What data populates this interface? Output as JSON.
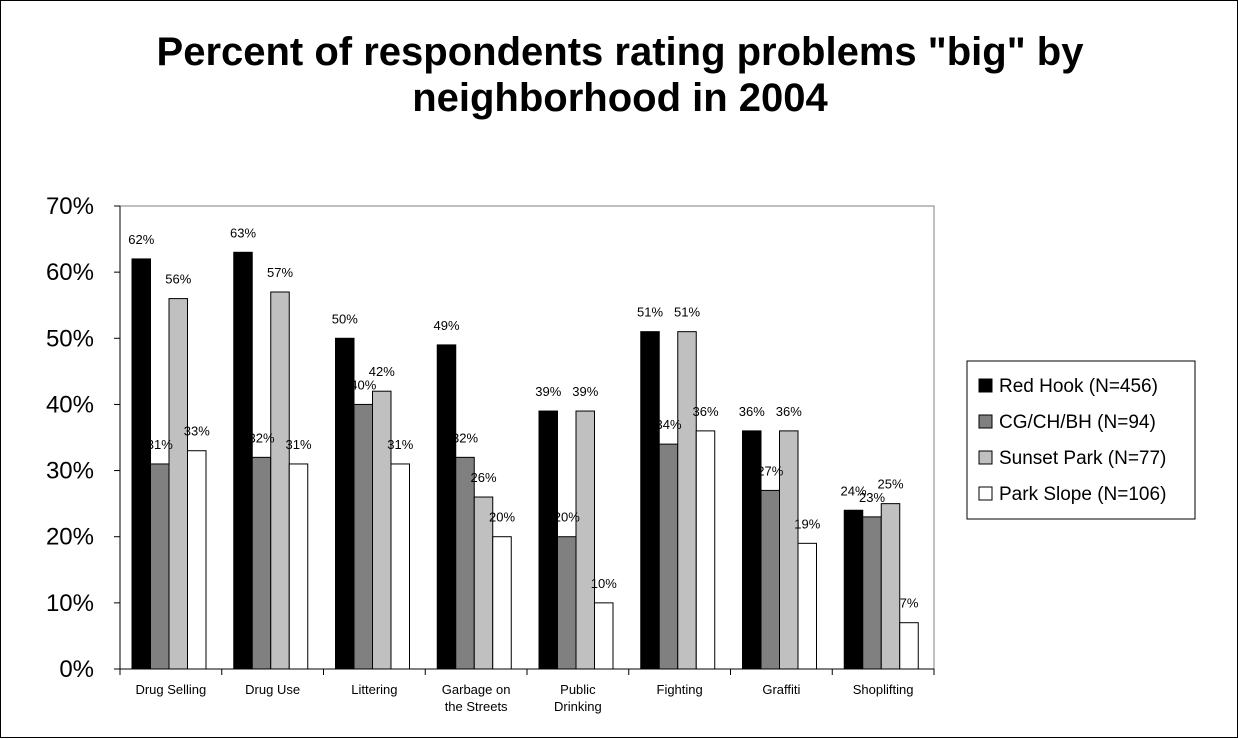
{
  "chart_data": {
    "type": "bar",
    "title": "Percent of respondents rating problems \"big\" by neighborhood in 2004",
    "title_lines": [
      "Percent of respondents rating problems \"big\" by",
      "neighborhood in 2004"
    ],
    "categories": [
      [
        "Drug Selling"
      ],
      [
        "Drug Use"
      ],
      [
        "Littering"
      ],
      [
        "Garbage on",
        "the Streets"
      ],
      [
        "Public",
        "Drinking"
      ],
      [
        "Fighting"
      ],
      [
        "Graffiti"
      ],
      [
        "Shoplifting"
      ]
    ],
    "ylim": [
      0,
      70
    ],
    "yticks": [
      "0%",
      "10%",
      "20%",
      "30%",
      "40%",
      "50%",
      "60%",
      "70%"
    ],
    "legend_position": "right",
    "series": [
      {
        "name": "Red Hook (N=456)",
        "color": "#000000",
        "values": [
          62,
          63,
          50,
          49,
          39,
          51,
          36,
          24
        ],
        "labels": [
          "62%",
          "63%",
          "50%",
          "49%",
          "39%",
          "51%",
          "36%",
          "24%"
        ]
      },
      {
        "name": "CG/CH/BH (N=94)",
        "color": "#808080",
        "values": [
          31,
          32,
          40,
          32,
          20,
          34,
          27,
          23
        ],
        "labels": [
          "31%",
          "32%",
          "40%",
          "32%",
          "20%",
          "34%",
          "27%",
          "23%"
        ]
      },
      {
        "name": "Sunset Park (N=77)",
        "color": "#c0c0c0",
        "values": [
          56,
          57,
          42,
          26,
          39,
          51,
          36,
          25
        ],
        "labels": [
          "56%",
          "57%",
          "42%",
          "26%",
          "39%",
          "51%",
          "36%",
          "25%"
        ]
      },
      {
        "name": "Park Slope (N=106)",
        "color": "#ffffff",
        "values": [
          33,
          31,
          31,
          20,
          10,
          36,
          19,
          7
        ],
        "labels": [
          "33%",
          "31%",
          "31%",
          "20%",
          "10%",
          "36%",
          "19%",
          "7%"
        ]
      }
    ]
  }
}
